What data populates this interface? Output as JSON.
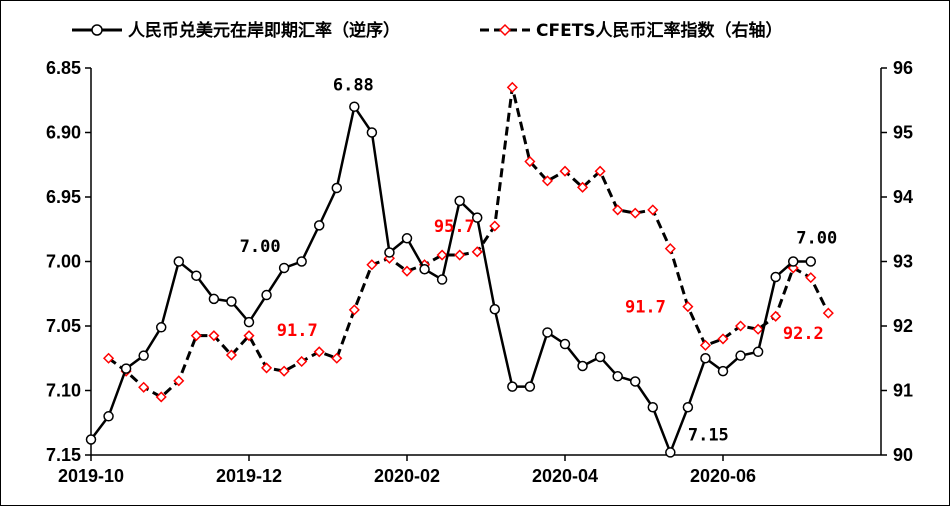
{
  "chart_data": {
    "type": "line",
    "title": "",
    "xlabel": "",
    "ylabel": "",
    "legend_position": "top",
    "x_ticks": [
      "2019-10",
      "2019-12",
      "2020-02",
      "2020-04",
      "2020-06"
    ],
    "x_tick_index": [
      0,
      9,
      18,
      27,
      36
    ],
    "x_count": 45,
    "left_axis": {
      "inverted": true,
      "ylim": [
        6.85,
        7.15
      ],
      "ticks": [
        "6.85",
        "6.90",
        "6.95",
        "7.00",
        "7.05",
        "7.10",
        "7.15"
      ]
    },
    "right_axis": {
      "ylim": [
        90,
        96
      ],
      "ticks": [
        "90",
        "91",
        "92",
        "93",
        "94",
        "95",
        "96"
      ]
    },
    "series": [
      {
        "name": "人民币兑美元在岸即期汇率（逆序）",
        "axis": "left",
        "color": "#000000",
        "values": [
          7.138,
          7.12,
          7.083,
          7.073,
          7.051,
          7.0,
          7.011,
          7.029,
          7.031,
          7.047,
          7.026,
          7.005,
          7.0,
          6.972,
          6.943,
          6.88,
          6.9,
          6.993,
          6.982,
          7.006,
          7.014,
          6.953,
          6.966,
          7.037,
          7.097,
          7.097,
          7.055,
          7.064,
          7.081,
          7.074,
          7.089,
          7.093,
          7.113,
          7.148,
          7.113,
          7.075,
          7.085,
          7.073,
          7.07,
          7.012,
          7.0,
          7.0
        ]
      },
      {
        "name": "CFETS人民币汇率指数（右轴）",
        "axis": "right",
        "color": "#000000",
        "marker_color": "#ff0000",
        "values": [
          91.5,
          91.3,
          91.05,
          90.9,
          91.15,
          91.85,
          91.85,
          91.55,
          91.85,
          91.35,
          91.3,
          91.45,
          91.6,
          91.5,
          92.25,
          92.95,
          93.05,
          92.85,
          92.95,
          93.1,
          93.1,
          93.15,
          93.55,
          95.7,
          94.55,
          94.25,
          94.4,
          94.15,
          94.4,
          93.8,
          93.75,
          93.8,
          93.2,
          92.3,
          91.7,
          91.8,
          92.0,
          91.95,
          92.15,
          92.9,
          92.75,
          92.2
        ]
      }
    ],
    "annotations": [
      {
        "text": "6.88",
        "color": "#000000"
      },
      {
        "text": "7.00",
        "color": "#000000"
      },
      {
        "text": "7.15",
        "color": "#000000"
      },
      {
        "text": "7.00",
        "color": "#000000"
      },
      {
        "text": "95.7",
        "color": "#ff0000"
      },
      {
        "text": "91.7",
        "color": "#ff0000"
      },
      {
        "text": "91.7",
        "color": "#ff0000"
      },
      {
        "text": "92.2",
        "color": "#ff0000"
      }
    ]
  }
}
